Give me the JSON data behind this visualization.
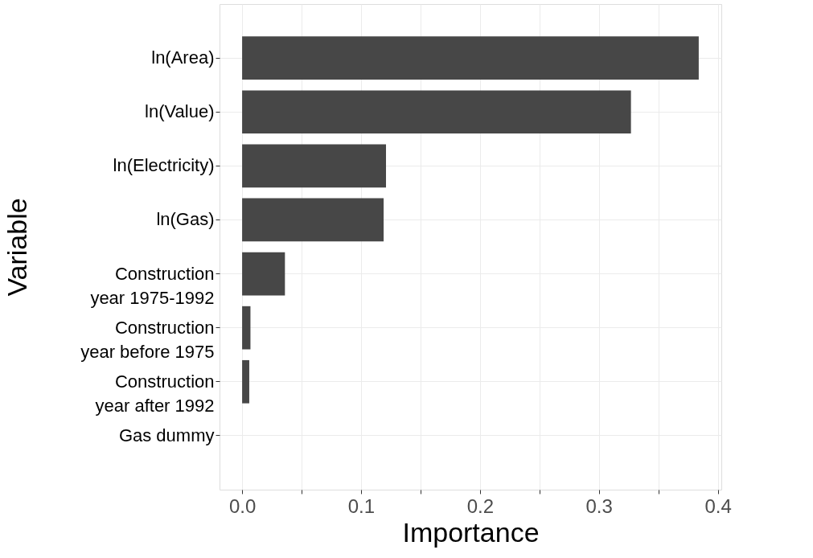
{
  "chart_data": {
    "type": "bar",
    "orientation": "horizontal",
    "xlabel": "Importance",
    "ylabel": "Variable",
    "categories": [
      "ln(Area)",
      "ln(Value)",
      "ln(Electricity)",
      "ln(Gas)",
      "Construction year 1975-1992",
      "Construction year before 1975",
      "Construction year after 1992",
      "Gas dummy"
    ],
    "values": [
      0.384,
      0.327,
      0.121,
      0.119,
      0.036,
      0.007,
      0.006,
      0
    ],
    "color": "#474747",
    "xlim": [
      -0.019,
      0.403
    ],
    "xticks": [
      {
        "value": 0,
        "label": "0.0"
      },
      {
        "value": 0.05,
        "label": null
      },
      {
        "value": 0.1,
        "label": "0.1"
      },
      {
        "value": 0.15,
        "label": null
      },
      {
        "value": 0.2,
        "label": "0.2"
      },
      {
        "value": 0.25,
        "label": null
      },
      {
        "value": 0.3,
        "label": "0.3"
      },
      {
        "value": 0.35,
        "label": null
      },
      {
        "value": 0.4,
        "label": "0.4"
      }
    ],
    "grid": true
  }
}
